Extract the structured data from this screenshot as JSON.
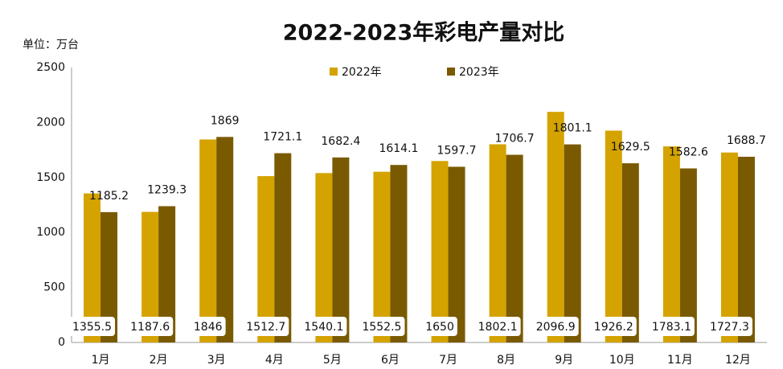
{
  "chart_data": {
    "type": "bar",
    "title": "2022-2023年彩电产量对比",
    "y_label": "单位：万台",
    "categories": [
      "1月",
      "2月",
      "3月",
      "4月",
      "5月",
      "6月",
      "7月",
      "8月",
      "9月",
      "10月",
      "11月",
      "12月"
    ],
    "series": [
      {
        "name": "2022年",
        "color": "#d4a300",
        "values": [
          1355.5,
          1187.6,
          1846,
          1512.7,
          1540.1,
          1552.5,
          1650,
          1802.1,
          2096.9,
          1926.2,
          1783.1,
          1727.3
        ]
      },
      {
        "name": "2023年",
        "color": "#7a5a00",
        "values": [
          1185.2,
          1239.3,
          1869,
          1721.1,
          1682.4,
          1614.1,
          1597.7,
          1706.7,
          1801.1,
          1629.5,
          1582.6,
          1688.7
        ]
      }
    ],
    "ylim": [
      0,
      2500
    ],
    "yticks": [
      0,
      500,
      1000,
      1500,
      2000,
      2500
    ],
    "grid": false
  }
}
